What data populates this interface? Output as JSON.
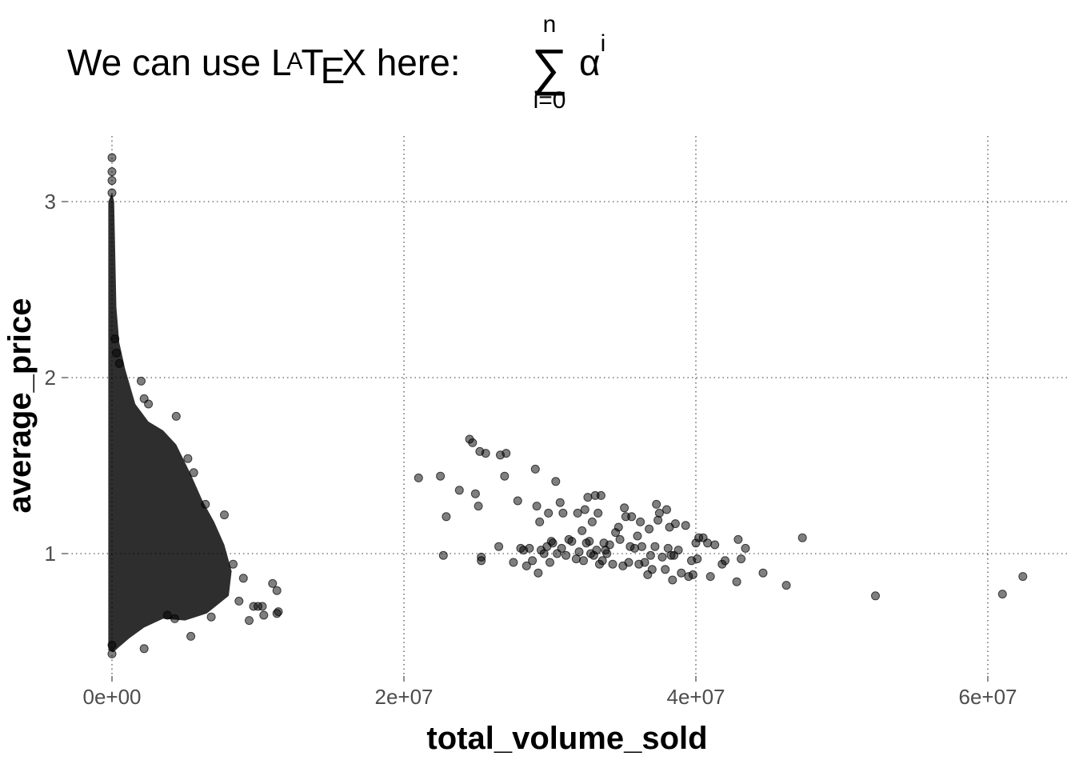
{
  "chart_data": {
    "type": "scatter",
    "title": {
      "prefix": "We can use ",
      "latex_L": "L",
      "latex_A": "A",
      "latex_T": "T",
      "latex_E": "E",
      "latex_X": "X",
      "suffix": " here: ",
      "sum_symbol": "∑",
      "sum_upper": "n",
      "sum_lower": "i=0",
      "term": "α",
      "term_exponent": "i"
    },
    "xlabel": "total_volume_sold",
    "ylabel": "average_price",
    "xlim": [
      -1500000,
      65000000
    ],
    "ylim": [
      0.35,
      3.35
    ],
    "x_ticks": [
      0,
      20000000,
      40000000,
      60000000
    ],
    "x_tick_labels": [
      "0e+00",
      "2e+07",
      "4e+07",
      "6e+07"
    ],
    "y_ticks": [
      1,
      2,
      3
    ],
    "y_tick_labels": [
      "1",
      "2",
      "3"
    ],
    "grid": "dotted major gridlines",
    "legend": "none",
    "point_color": "#000000",
    "point_opacity": 0.5,
    "series": [
      {
        "points": [
          [
            21000000,
            1.43
          ],
          [
            22500000,
            1.44
          ],
          [
            22700000,
            0.99
          ],
          [
            22900000,
            1.21
          ],
          [
            23800000,
            1.36
          ],
          [
            24500000,
            1.65
          ],
          [
            24700000,
            1.63
          ],
          [
            24900000,
            1.34
          ],
          [
            25100000,
            1.27
          ],
          [
            25200000,
            1.58
          ],
          [
            25300000,
            0.98
          ],
          [
            25300000,
            0.96
          ],
          [
            25600000,
            1.57
          ],
          [
            26500000,
            1.04
          ],
          [
            26600000,
            1.56
          ],
          [
            26900000,
            1.44
          ],
          [
            27000000,
            1.57
          ],
          [
            27500000,
            0.95
          ],
          [
            27800000,
            1.3
          ],
          [
            28000000,
            1.03
          ],
          [
            28200000,
            1.02
          ],
          [
            28400000,
            0.93
          ],
          [
            28600000,
            1.03
          ],
          [
            28800000,
            0.96
          ],
          [
            29000000,
            1.48
          ],
          [
            29100000,
            1.27
          ],
          [
            29200000,
            0.89
          ],
          [
            29300000,
            1.18
          ],
          [
            29400000,
            1.02
          ],
          [
            29600000,
            1.0
          ],
          [
            29800000,
            1.04
          ],
          [
            29900000,
            1.23
          ],
          [
            30000000,
            0.95
          ],
          [
            30100000,
            1.07
          ],
          [
            30200000,
            1.06
          ],
          [
            30400000,
            1.41
          ],
          [
            30500000,
            1.0
          ],
          [
            30700000,
            1.29
          ],
          [
            30800000,
            1.03
          ],
          [
            30900000,
            1.23
          ],
          [
            31100000,
            0.99
          ],
          [
            31300000,
            1.08
          ],
          [
            31500000,
            1.07
          ],
          [
            31800000,
            0.97
          ],
          [
            31900000,
            1.23
          ],
          [
            32000000,
            1.01
          ],
          [
            32200000,
            1.13
          ],
          [
            32300000,
            0.96
          ],
          [
            32400000,
            1.25
          ],
          [
            32500000,
            1.06
          ],
          [
            32600000,
            1.32
          ],
          [
            32700000,
            1.07
          ],
          [
            32800000,
            1.0
          ],
          [
            32900000,
            1.18
          ],
          [
            33000000,
            0.99
          ],
          [
            33100000,
            1.33
          ],
          [
            33200000,
            1.02
          ],
          [
            33300000,
            1.23
          ],
          [
            33400000,
            0.94
          ],
          [
            33500000,
            1.33
          ],
          [
            33600000,
            0.96
          ],
          [
            33700000,
            1.06
          ],
          [
            33800000,
            1.02
          ],
          [
            33900000,
            1.0
          ],
          [
            34100000,
            1.05
          ],
          [
            34300000,
            0.94
          ],
          [
            34500000,
            1.12
          ],
          [
            34700000,
            1.15
          ],
          [
            34800000,
            1.08
          ],
          [
            35000000,
            0.93
          ],
          [
            35100000,
            1.26
          ],
          [
            35200000,
            1.21
          ],
          [
            35400000,
            0.95
          ],
          [
            35500000,
            1.04
          ],
          [
            35600000,
            1.21
          ],
          [
            35800000,
            1.03
          ],
          [
            36000000,
            1.1
          ],
          [
            36100000,
            0.94
          ],
          [
            36200000,
            1.18
          ],
          [
            36300000,
            1.04
          ],
          [
            36500000,
            0.95
          ],
          [
            36700000,
            0.88
          ],
          [
            36800000,
            1.14
          ],
          [
            36900000,
            0.99
          ],
          [
            37000000,
            0.91
          ],
          [
            37200000,
            1.04
          ],
          [
            37300000,
            1.28
          ],
          [
            37400000,
            1.19
          ],
          [
            37500000,
            1.23
          ],
          [
            37700000,
            0.98
          ],
          [
            37900000,
            0.91
          ],
          [
            38000000,
            1.25
          ],
          [
            38100000,
            1.03
          ],
          [
            38200000,
            1.15
          ],
          [
            38300000,
            0.99
          ],
          [
            38400000,
            0.85
          ],
          [
            38500000,
            0.99
          ],
          [
            38600000,
            1.17
          ],
          [
            38800000,
            1.02
          ],
          [
            39000000,
            0.89
          ],
          [
            39300000,
            1.16
          ],
          [
            39500000,
            0.87
          ],
          [
            39700000,
            0.96
          ],
          [
            39800000,
            0.88
          ],
          [
            40000000,
            1.06
          ],
          [
            40100000,
            0.97
          ],
          [
            40200000,
            1.09
          ],
          [
            40500000,
            1.09
          ],
          [
            40800000,
            1.06
          ],
          [
            41000000,
            0.87
          ],
          [
            41300000,
            1.05
          ],
          [
            41800000,
            0.94
          ],
          [
            42000000,
            0.96
          ],
          [
            42800000,
            0.84
          ],
          [
            42900000,
            1.08
          ],
          [
            43100000,
            0.97
          ],
          [
            43400000,
            1.03
          ],
          [
            44600000,
            0.89
          ],
          [
            46200000,
            0.82
          ],
          [
            47300000,
            1.09
          ],
          [
            52300000,
            0.76
          ],
          [
            61000000,
            0.77
          ],
          [
            62400000,
            0.87
          ]
        ]
      }
    ]
  }
}
